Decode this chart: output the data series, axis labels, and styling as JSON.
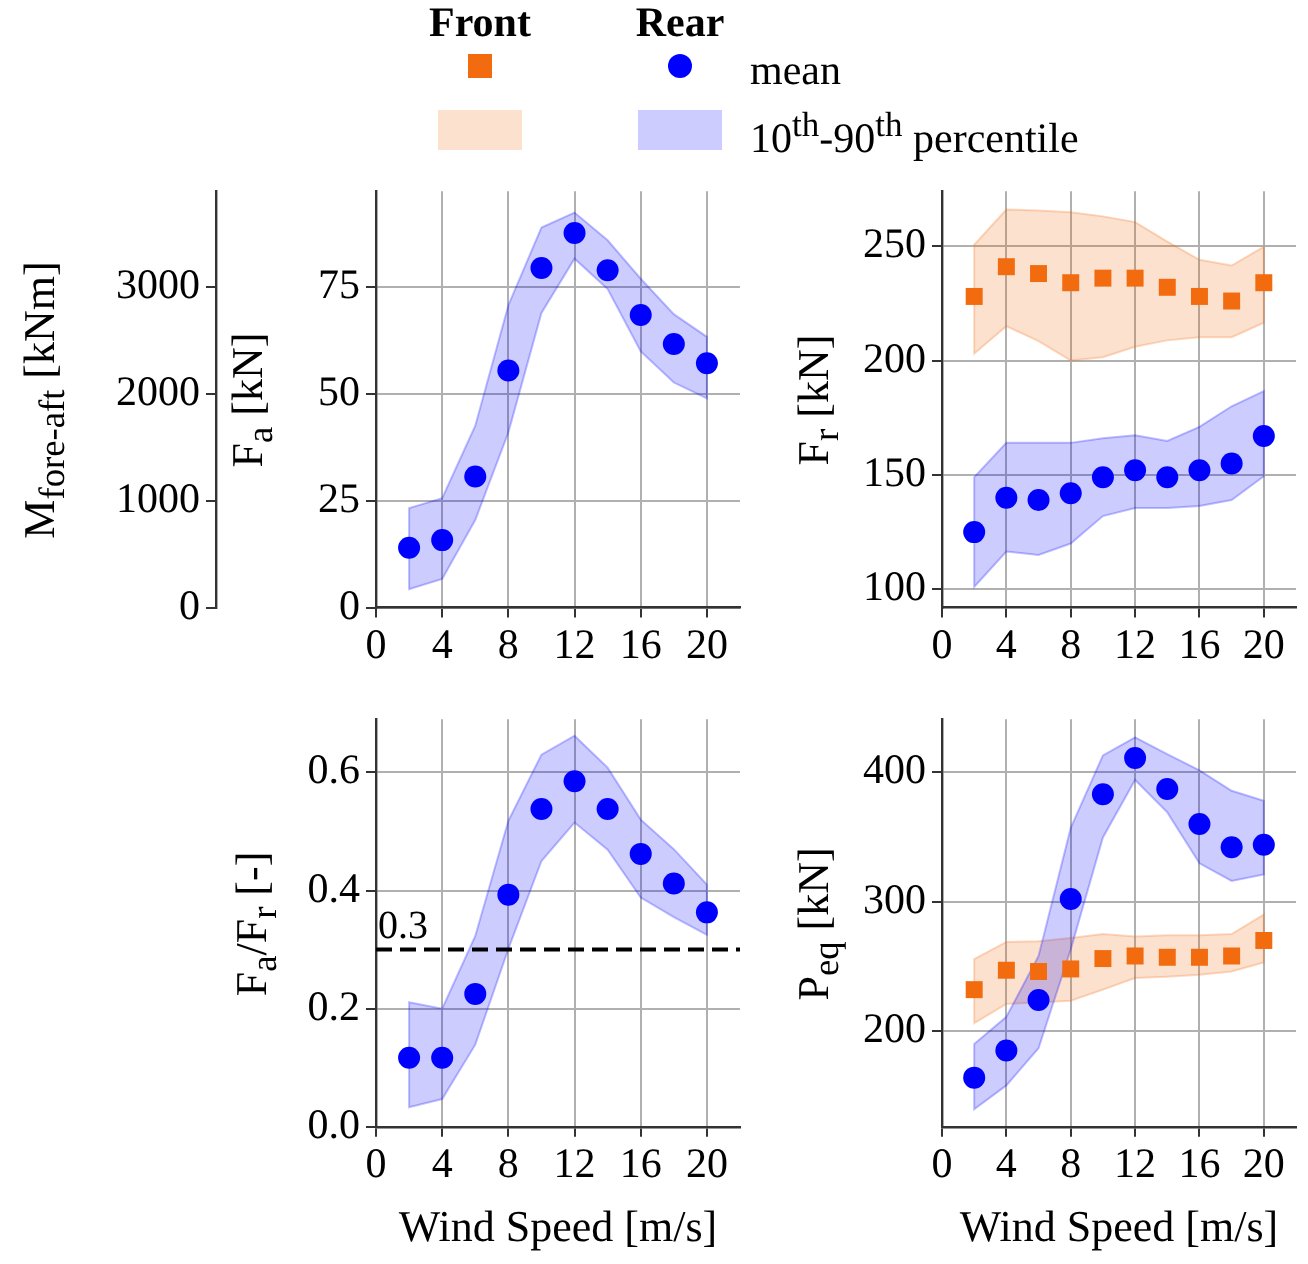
{
  "chart_data": [
    {
      "type": "scatter",
      "ylabel": "F$_{a}$ [kN]",
      "y2label": "M$_{fore-aft}$ [kNm]",
      "x": [
        2,
        4,
        6,
        8,
        10,
        12,
        14,
        16,
        18,
        20
      ],
      "xlim": [
        0,
        22
      ],
      "xticks": [
        0,
        4,
        8,
        12,
        16,
        20
      ],
      "ylim": [
        0,
        97.5
      ],
      "yticks": [
        0,
        25,
        50,
        75
      ],
      "y2lim": [
        0,
        3900
      ],
      "y2ticks": [
        0,
        1000,
        2000,
        3000
      ],
      "grid": true,
      "series": [
        {
          "color": "#0000ff",
          "marker": "circle",
          "values": [
            14,
            15.8,
            30.7,
            55.5,
            79.5,
            87.7,
            79,
            68.5,
            61.7,
            57.2
          ],
          "lower": [
            4.3,
            6.7,
            20.5,
            41,
            69,
            81.7,
            74.6,
            60,
            52.7,
            49
          ],
          "upper": [
            23.3,
            25.6,
            42.6,
            70.8,
            89,
            92.5,
            86,
            77,
            68.7,
            63.4
          ]
        }
      ]
    },
    {
      "type": "scatter",
      "ylabel": "F$_{r}$ [kN]",
      "x": [
        2,
        4,
        6,
        8,
        10,
        12,
        14,
        16,
        18,
        20
      ],
      "xlim": [
        0,
        22
      ],
      "xticks": [
        0,
        4,
        8,
        12,
        16,
        20
      ],
      "ylim": [
        92,
        274
      ],
      "yticks": [
        100,
        150,
        200,
        250
      ],
      "grid": true,
      "annotations": [
        "Front",
        "Rear",
        "mean",
        "10$^{th}$-90$^{th}$ percentile"
      ],
      "series": [
        {
          "color": "#f26b0f",
          "marker": "square",
          "values": [
            228,
            241,
            238,
            234,
            236,
            236,
            232,
            228,
            226,
            234
          ],
          "lower": [
            203,
            215,
            208.5,
            200,
            201.4,
            206,
            208.8,
            210.2,
            210.2,
            216.5
          ],
          "upper": [
            250.6,
            266,
            265.6,
            264.8,
            263,
            260.5,
            252,
            244,
            241.5,
            249.7
          ]
        },
        {
          "color": "#0000ff",
          "marker": "circle",
          "values": [
            125,
            140,
            139,
            142,
            149,
            152,
            149,
            152,
            155,
            167
          ],
          "lower": [
            101,
            116.5,
            115,
            120,
            132,
            135.5,
            135.5,
            136.4,
            139,
            149.4
          ],
          "upper": [
            149,
            164,
            164,
            164,
            166,
            167.3,
            164.8,
            171,
            180,
            186.6
          ]
        }
      ]
    },
    {
      "type": "scatter",
      "xlabel": "Wind Speed [m/s]",
      "ylabel": "F$_{a}$/F$_{r}$ [-]",
      "x": [
        2,
        4,
        6,
        8,
        10,
        12,
        14,
        16,
        18,
        20
      ],
      "xlim": [
        0,
        22
      ],
      "xticks": [
        0,
        4,
        8,
        12,
        16,
        20
      ],
      "ylim": [
        0,
        0.69
      ],
      "yticks": [
        {
          "value": 0,
          "label": "0.0"
        },
        0.2,
        0.4,
        0.6
      ],
      "grid": true,
      "ref_lines": [
        {
          "axis": "y",
          "value": 0.3,
          "label": "0.3",
          "color": "#000000",
          "line_style": "dashed"
        }
      ],
      "series": [
        {
          "color": "#0000ff",
          "marker": "circle",
          "values": [
            0.117,
            0.117,
            0.225,
            0.393,
            0.538,
            0.585,
            0.538,
            0.462,
            0.412,
            0.363
          ],
          "lower": [
            0.033,
            0.047,
            0.139,
            0.301,
            0.45,
            0.515,
            0.469,
            0.388,
            0.355,
            0.325
          ],
          "upper": [
            0.211,
            0.2,
            0.323,
            0.518,
            0.63,
            0.662,
            0.608,
            0.52,
            0.47,
            0.41
          ]
        }
      ]
    },
    {
      "type": "scatter",
      "xlabel": "Wind Speed [m/s]",
      "ylabel": "P$_{eq}$ [kN]",
      "x": [
        2,
        4,
        6,
        8,
        10,
        12,
        14,
        16,
        18,
        20
      ],
      "xlim": [
        0,
        22
      ],
      "xticks": [
        0,
        4,
        8,
        12,
        16,
        20
      ],
      "ylim": [
        126,
        441
      ],
      "yticks": [
        200,
        300,
        400
      ],
      "grid": true,
      "series": [
        {
          "color": "#f26b0f",
          "marker": "square",
          "values": [
            232,
            247,
            246,
            248,
            256,
            258,
            257,
            257,
            258,
            270
          ],
          "lower": [
            206,
            221,
            222,
            223.5,
            232,
            241,
            242,
            243.5,
            246,
            253
          ],
          "upper": [
            255.6,
            268.9,
            269.4,
            272,
            275,
            273,
            274,
            274,
            275,
            290
          ]
        },
        {
          "color": "#0000ff",
          "marker": "circle",
          "values": [
            164,
            185,
            224,
            302,
            383,
            411,
            387,
            360,
            342,
            344
          ],
          "lower": [
            139.5,
            158,
            186.7,
            263,
            349.6,
            394,
            369,
            329.6,
            316,
            321
          ],
          "upper": [
            190,
            211,
            258,
            357,
            413,
            427,
            414,
            401.5,
            385.7,
            378
          ]
        }
      ]
    }
  ]
}
